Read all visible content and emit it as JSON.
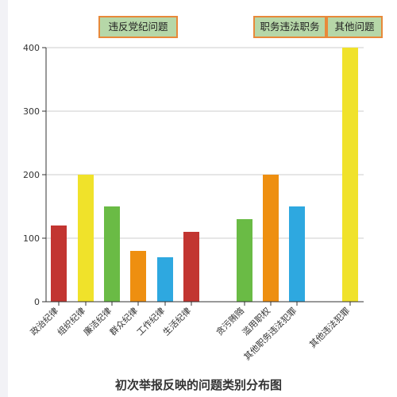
{
  "chart_data": {
    "type": "bar",
    "title": "初次举报反映的问题类别分布图",
    "xlabel": "",
    "ylabel": "",
    "ylim": [
      0,
      400
    ],
    "yticks": [
      0,
      100,
      200,
      300,
      400
    ],
    "grid": true,
    "groups": [
      {
        "label": "违反党纪问题",
        "categories": [
          "政治纪律",
          "组织纪律",
          "廉洁纪律",
          "群众纪律",
          "工作纪律",
          "生活纪律"
        ]
      },
      {
        "label": "职务违法职务",
        "categories": [
          "贪污贿赂",
          "滥用职权",
          "其他职务违法犯罪"
        ]
      },
      {
        "label": "其他问题",
        "categories": [
          "其他违法犯罪"
        ]
      }
    ],
    "categories": [
      "政治纪律",
      "组织纪律",
      "廉洁纪律",
      "群众纪律",
      "工作纪律",
      "生活纪律",
      "贪污贿赂",
      "滥用职权",
      "其他职务违法犯罪",
      "其他违法犯罪"
    ],
    "values": [
      120,
      200,
      150,
      80,
      70,
      110,
      130,
      200,
      150,
      400
    ],
    "colors": [
      "#c23531",
      "#f0e22a",
      "#6abb45",
      "#ee8f10",
      "#2ea8e0",
      "#c23531",
      "#6abb45",
      "#ee8f10",
      "#2ea8e0",
      "#f0e22a"
    ]
  },
  "colors": {
    "group_box_fill": "#b6d7a8",
    "group_box_border": "#e8893a",
    "grid": "#cccccc",
    "axis": "#333333"
  }
}
